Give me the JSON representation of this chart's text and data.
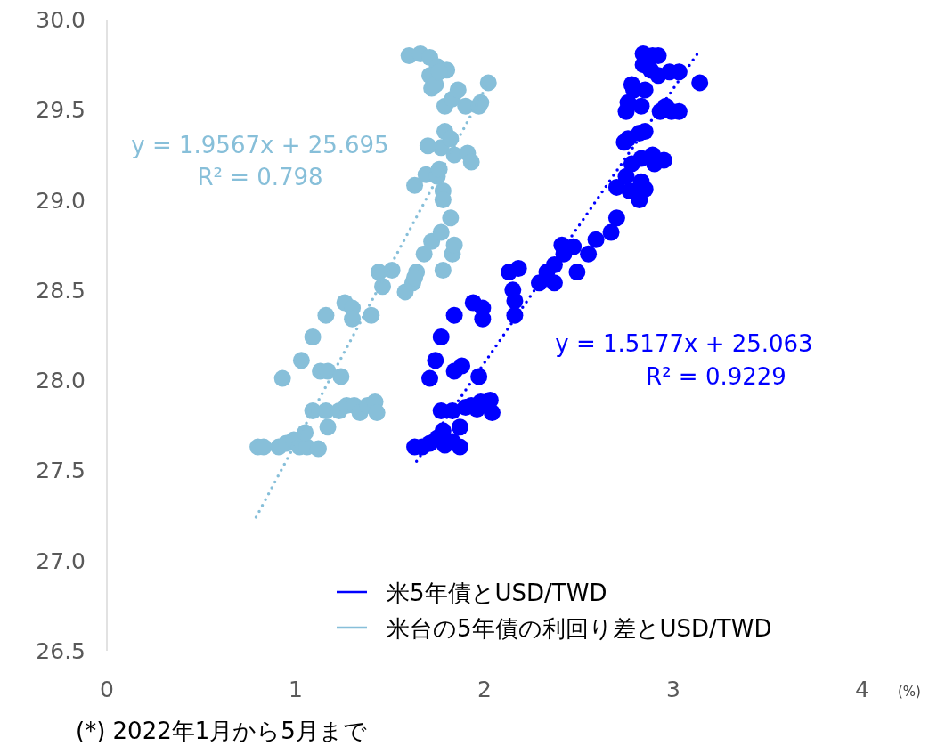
{
  "chart_data": {
    "type": "scatter",
    "xlabel": "(%)",
    "xlim": [
      0,
      4
    ],
    "ylim": [
      26.5,
      30
    ],
    "xticks": [
      0,
      1,
      2,
      3,
      4
    ],
    "yticks": [
      {
        "value": 26.5,
        "label": "26.5"
      },
      {
        "value": 27,
        "label": "27.0"
      },
      {
        "value": 27.5,
        "label": "27.5"
      },
      {
        "value": 28,
        "label": "28.0"
      },
      {
        "value": 28.5,
        "label": "28.5"
      },
      {
        "value": 29,
        "label": "29.0"
      },
      {
        "value": 29.5,
        "label": "29.5"
      },
      {
        "value": 30,
        "label": "30.0"
      }
    ],
    "grid": false,
    "legend": "bottom right",
    "annotations": [
      "y = 1.9567x + 25.695",
      "R² = 0.798",
      "y = 1.5177x + 25.063",
      "R² = 0.9229",
      "(*) 2022年1月から5月まで"
    ],
    "series": [
      {
        "name": "米5年債とUSD/TWD",
        "color": "#0000ff",
        "marker": "circle",
        "x": [
          1.63,
          1.67,
          1.71,
          1.75,
          1.78,
          1.79,
          1.83,
          1.87,
          1.87,
          1.77,
          1.83,
          1.9,
          1.93,
          1.98,
          2.03,
          2.04,
          1.96,
          1.71,
          1.74,
          1.77,
          1.84,
          1.88,
          1.97,
          1.84,
          1.94,
          1.99,
          1.99,
          2.13,
          2.15,
          2.18,
          2.16,
          2.16,
          2.29,
          2.33,
          2.37,
          2.37,
          2.42,
          2.41,
          2.49,
          2.47,
          2.55,
          2.59,
          2.67,
          2.7,
          2.7,
          2.75,
          2.77,
          2.83,
          2.82,
          2.85,
          2.78,
          2.74,
          2.76,
          2.83,
          2.89,
          2.95,
          2.9,
          2.82,
          2.85,
          2.76,
          2.75,
          2.83,
          2.79,
          2.78,
          2.85,
          2.93,
          2.96,
          2.99,
          3.03,
          2.92,
          2.98,
          3.03,
          2.88,
          2.84,
          2.84,
          2.89,
          2.92,
          3.14
        ],
        "values": [
          27.63,
          27.63,
          27.65,
          27.68,
          27.72,
          27.64,
          27.66,
          27.63,
          27.74,
          27.83,
          27.83,
          27.85,
          27.86,
          27.88,
          27.89,
          27.82,
          27.84,
          28.01,
          28.11,
          28.24,
          28.05,
          28.08,
          28.02,
          28.36,
          28.43,
          28.4,
          28.34,
          28.6,
          28.5,
          28.62,
          28.36,
          28.44,
          28.54,
          28.6,
          28.54,
          28.64,
          28.7,
          28.75,
          28.6,
          28.74,
          28.7,
          28.78,
          28.82,
          28.9,
          29.07,
          29.13,
          29.05,
          29.1,
          29.0,
          29.06,
          29.2,
          29.32,
          29.34,
          29.23,
          29.25,
          29.22,
          29.2,
          29.37,
          29.38,
          29.54,
          29.49,
          29.52,
          29.61,
          29.64,
          29.61,
          29.49,
          29.52,
          29.49,
          29.49,
          29.69,
          29.71,
          29.71,
          29.72,
          29.75,
          29.81,
          29.8,
          29.8,
          29.65
        ]
      },
      {
        "name": "米台の5年債の利回り差とUSD/TWD",
        "color": "#87bfd9",
        "marker": "circle",
        "x": [
          0.8,
          0.83,
          0.91,
          0.95,
          0.99,
          1.02,
          1.06,
          1.12,
          1.05,
          1.09,
          1.16,
          1.17,
          1.23,
          1.27,
          1.31,
          1.34,
          1.38,
          1.42,
          1.43,
          0.93,
          1.03,
          1.09,
          1.13,
          1.17,
          1.24,
          1.16,
          1.26,
          1.3,
          1.3,
          1.4,
          1.44,
          1.46,
          1.51,
          1.58,
          1.62,
          1.64,
          1.63,
          1.78,
          1.68,
          1.72,
          1.77,
          1.83,
          1.82,
          1.84,
          1.63,
          1.69,
          1.75,
          1.76,
          1.78,
          1.78,
          1.77,
          1.7,
          1.79,
          1.82,
          1.84,
          1.91,
          1.93,
          1.79,
          1.83,
          1.86,
          1.9,
          1.97,
          1.98,
          2.02,
          1.6,
          1.66,
          1.71,
          1.75,
          1.8,
          1.71,
          1.72,
          1.74,
          1.76
        ],
        "values": [
          27.63,
          27.63,
          27.63,
          27.65,
          27.67,
          27.63,
          27.63,
          27.62,
          27.71,
          27.83,
          27.83,
          27.74,
          27.83,
          27.86,
          27.86,
          27.82,
          27.86,
          27.88,
          27.82,
          28.01,
          28.11,
          28.24,
          28.05,
          28.05,
          28.02,
          28.36,
          28.43,
          28.4,
          28.34,
          28.36,
          28.6,
          28.52,
          28.61,
          28.49,
          28.54,
          28.6,
          28.57,
          28.61,
          28.7,
          28.77,
          28.82,
          28.7,
          28.9,
          28.75,
          29.08,
          29.14,
          29.13,
          29.17,
          29.05,
          29.0,
          29.29,
          29.3,
          29.38,
          29.34,
          29.25,
          29.26,
          29.21,
          29.52,
          29.56,
          29.61,
          29.52,
          29.52,
          29.54,
          29.65,
          29.8,
          29.81,
          29.79,
          29.74,
          29.72,
          29.69,
          29.62,
          29.64,
          29.71
        ]
      },
      {
        "color": "#0000ff",
        "type": "line",
        "marker": "none",
        "line_style": "dotted",
        "x": [
          1.64,
          3.14
        ],
        "values": [
          27.55,
          29.83
        ]
      },
      {
        "color": "#87bfd9",
        "type": "line",
        "marker": "none",
        "line_style": "dotted",
        "x": [
          0.79,
          2.02
        ],
        "values": [
          27.24,
          29.65
        ]
      }
    ]
  }
}
